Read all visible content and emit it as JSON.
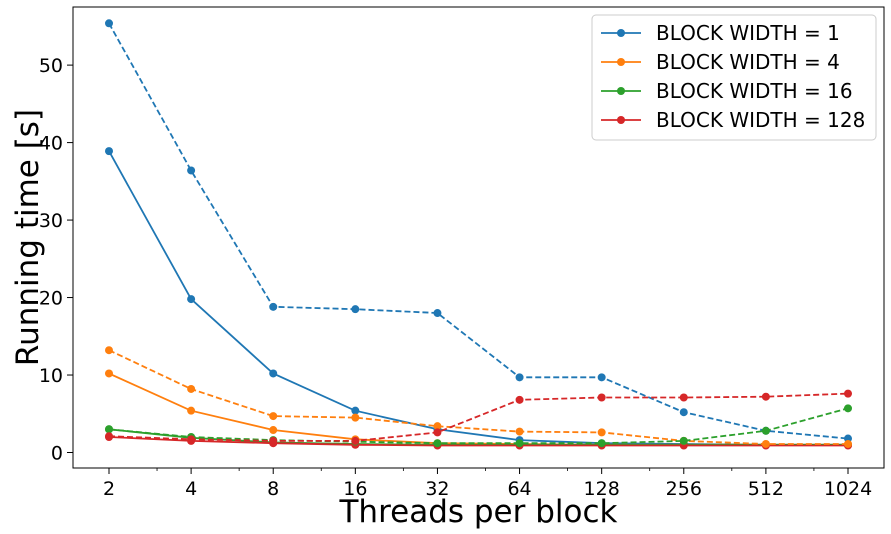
{
  "chart_data": {
    "type": "line",
    "xlabel": "Threads per block",
    "ylabel": "Running time [s]",
    "x": [
      2,
      4,
      8,
      16,
      32,
      64,
      128,
      256,
      512,
      1024
    ],
    "x_tick_labels": [
      "2",
      "4",
      "8",
      "16",
      "32",
      "64",
      "128",
      "256",
      "512",
      "1024"
    ],
    "x_scale": "log2",
    "ylim": [
      -2,
      57.5
    ],
    "y_ticks": [
      0,
      10,
      20,
      30,
      40,
      50
    ],
    "y_tick_labels": [
      "0",
      "10",
      "20",
      "30",
      "40",
      "50"
    ],
    "grid": false,
    "legend_position": "top-right",
    "series": [
      {
        "name": "BLOCK WIDTH = 1",
        "style": "solid",
        "color": "#1f77b4",
        "values": [
          38.9,
          19.8,
          10.2,
          5.4,
          3.0,
          1.6,
          1.2,
          1.1,
          1.0,
          1.0
        ]
      },
      {
        "name": "BLOCK WIDTH = 4",
        "style": "solid",
        "color": "#ff7f0e",
        "values": [
          10.2,
          5.4,
          2.9,
          1.7,
          1.2,
          1.1,
          1.0,
          1.0,
          1.0,
          1.0
        ]
      },
      {
        "name": "BLOCK WIDTH = 16",
        "style": "solid",
        "color": "#2ca02c",
        "values": [
          3.0,
          1.9,
          1.3,
          1.1,
          1.0,
          1.0,
          1.0,
          1.0,
          1.0,
          1.0
        ]
      },
      {
        "name": "BLOCK WIDTH = 128",
        "style": "solid",
        "color": "#d62728",
        "values": [
          2.0,
          1.5,
          1.2,
          1.0,
          0.9,
          0.9,
          0.9,
          0.9,
          0.9,
          0.9
        ]
      },
      {
        "name": "",
        "style": "dashed",
        "color": "#1f77b4",
        "values": [
          55.4,
          36.4,
          18.8,
          18.5,
          18.0,
          9.7,
          9.7,
          5.2,
          2.8,
          1.8
        ]
      },
      {
        "name": "",
        "style": "dashed",
        "color": "#ff7f0e",
        "values": [
          13.2,
          8.2,
          4.7,
          4.5,
          3.4,
          2.7,
          2.6,
          1.5,
          1.1,
          1.1
        ]
      },
      {
        "name": "",
        "style": "dashed",
        "color": "#2ca02c",
        "values": [
          3.0,
          2.0,
          1.6,
          1.4,
          1.2,
          1.2,
          1.2,
          1.5,
          2.8,
          5.7
        ]
      },
      {
        "name": "",
        "style": "dashed",
        "color": "#d62728",
        "values": [
          2.1,
          1.7,
          1.5,
          1.5,
          2.6,
          6.8,
          7.1,
          7.1,
          7.2,
          7.6
        ]
      }
    ]
  }
}
